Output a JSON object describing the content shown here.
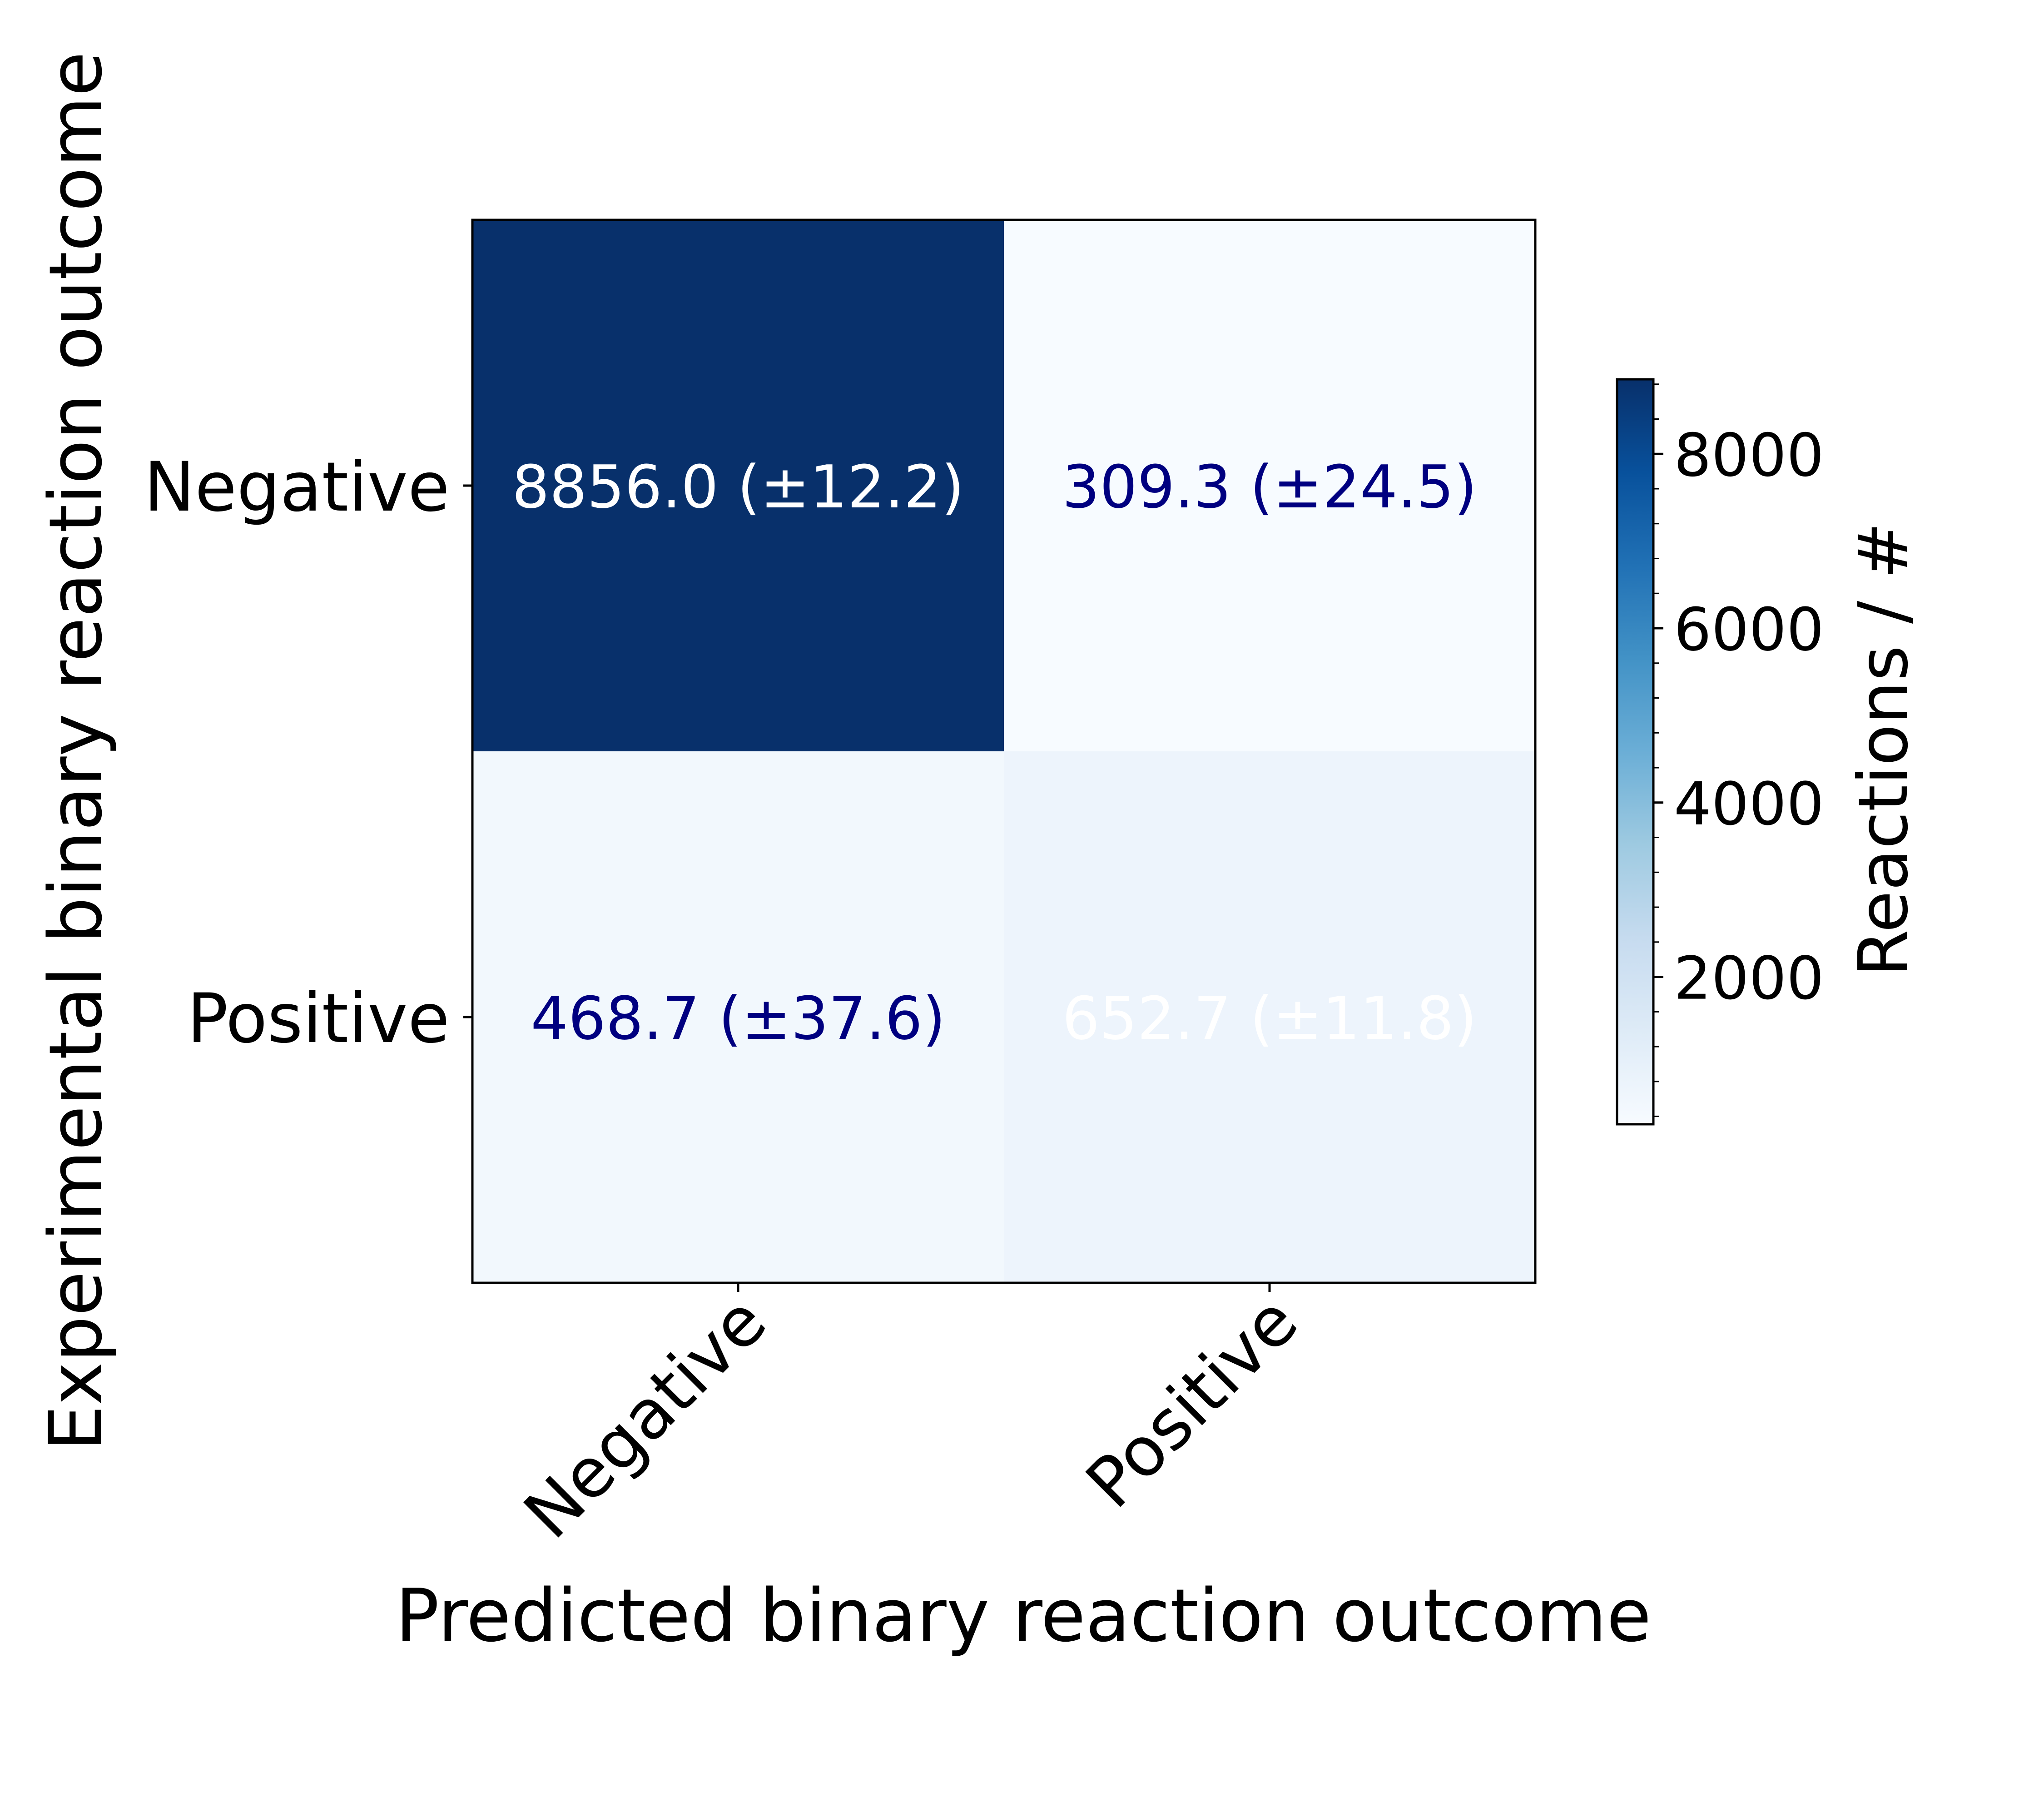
{
  "chart_data": {
    "type": "heatmap",
    "xlabel": "Predicted binary reaction outcome",
    "ylabel": "Experimental binary reaction outcome",
    "x_categories": [
      "Negative",
      "Positive"
    ],
    "y_categories": [
      "Negative",
      "Positive"
    ],
    "cells": [
      {
        "row": 0,
        "col": 0,
        "value": 8856.0,
        "label": "8856.0 (±12.2)",
        "text_color": "#ffffff",
        "fill": "#08306b"
      },
      {
        "row": 0,
        "col": 1,
        "value": 309.3,
        "label": "309.3 (±24.5)",
        "text_color": "#000080",
        "fill": "#f7fbff"
      },
      {
        "row": 1,
        "col": 0,
        "value": 468.7,
        "label": "468.7 (±37.6)",
        "text_color": "#000080",
        "fill": "#f2f8fd"
      },
      {
        "row": 1,
        "col": 1,
        "value": 652.7,
        "label": "652.7 (±11.8)",
        "text_color": "#ffffff",
        "fill": "#edf4fc"
      }
    ],
    "colorbar": {
      "label": "Reactions / #",
      "range": [
        309.3,
        8856.0
      ],
      "ticks": [
        2000,
        4000,
        6000,
        8000
      ],
      "tick_labels": [
        "2000",
        "4000",
        "6000",
        "8000"
      ],
      "minor_step": 400,
      "colormap": "Blues"
    },
    "grid": false
  }
}
